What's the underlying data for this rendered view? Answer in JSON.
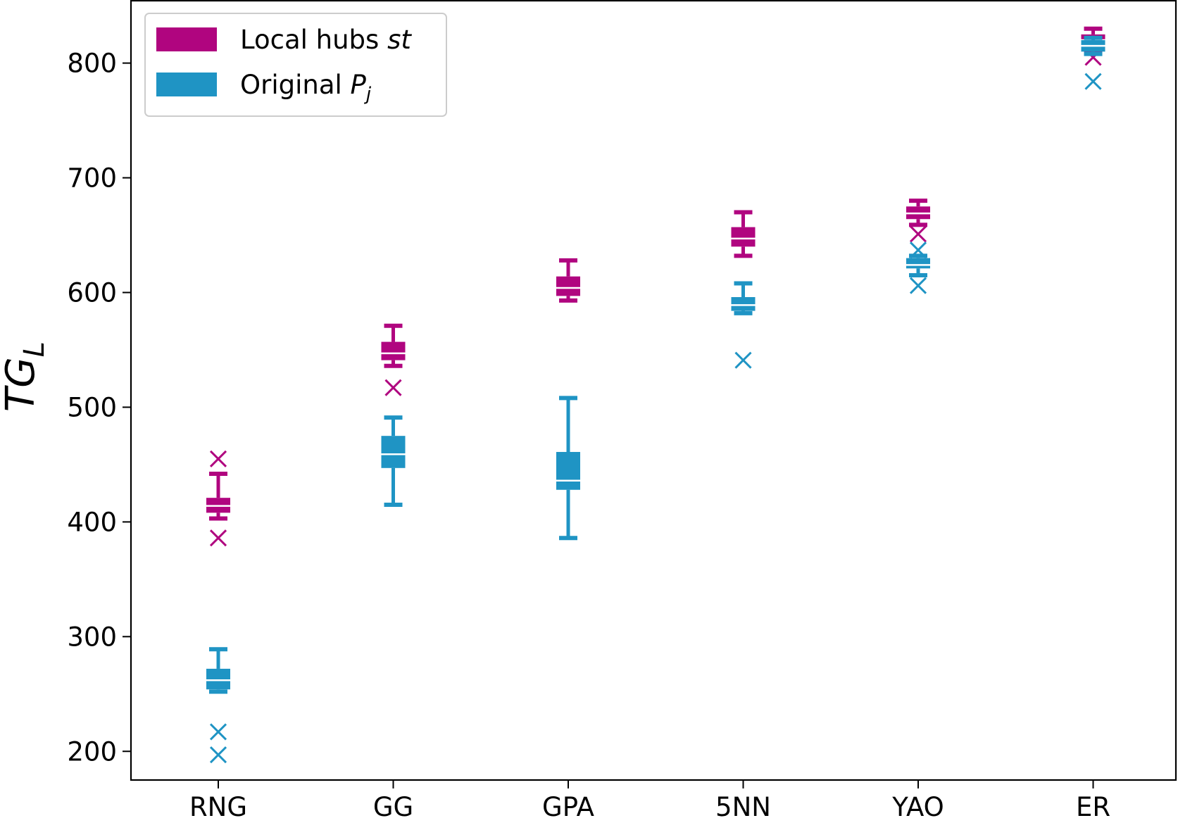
{
  "chart_data": {
    "type": "boxplot",
    "title": "",
    "xlabel": "",
    "ylabel": {
      "main": "TG",
      "sub": "L"
    },
    "ylim": [
      175,
      855
    ],
    "yticks": [
      200,
      300,
      400,
      500,
      600,
      700,
      800
    ],
    "categories": [
      "RNG",
      "GG",
      "GPA",
      "5NN",
      "YAO",
      "ER"
    ],
    "legend": {
      "placement": "top-left"
    },
    "series": [
      {
        "name": "Local hubs st",
        "name_parts": [
          "Local hubs ",
          "st"
        ],
        "color": "#b0057f",
        "boxes": [
          {
            "whisker_low": 403,
            "q1": 408,
            "median": 414,
            "q3": 421,
            "whisker_high": 442,
            "fliers": [
              455,
              386
            ]
          },
          {
            "whisker_low": 536,
            "q1": 541,
            "median": 547,
            "q3": 557,
            "whisker_high": 571,
            "fliers": [
              517
            ]
          },
          {
            "whisker_low": 593,
            "q1": 597,
            "median": 604,
            "q3": 614,
            "whisker_high": 628,
            "fliers": []
          },
          {
            "whisker_low": 632,
            "q1": 640,
            "median": 647,
            "q3": 657,
            "whisker_high": 670,
            "fliers": []
          },
          {
            "whisker_low": 659,
            "q1": 664,
            "median": 669,
            "q3": 675,
            "whisker_high": 680,
            "fliers": [
              651
            ]
          },
          {
            "whisker_low": 810,
            "q1": 815,
            "median": 820,
            "q3": 825,
            "whisker_high": 830,
            "fliers": [
              805
            ]
          }
        ]
      },
      {
        "name": "Original Pj",
        "name_parts": [
          "Original ",
          "P",
          "j"
        ],
        "color": "#1f94c4",
        "boxes": [
          {
            "whisker_low": 252,
            "q1": 254,
            "median": 262,
            "q3": 272,
            "whisker_high": 289,
            "fliers": [
              217,
              197
            ]
          },
          {
            "whisker_low": 415,
            "q1": 447,
            "median": 459,
            "q3": 475,
            "whisker_high": 491,
            "fliers": []
          },
          {
            "whisker_low": 386,
            "q1": 428,
            "median": 436,
            "q3": 461,
            "whisker_high": 508,
            "fliers": []
          },
          {
            "whisker_low": 582,
            "q1": 584,
            "median": 589,
            "q3": 596,
            "whisker_high": 608,
            "fliers": [
              541
            ]
          },
          {
            "whisker_low": 615,
            "q1": 621,
            "median": 624,
            "q3": 630,
            "whisker_high": 632,
            "fliers": [
              637,
              606
            ]
          },
          {
            "whisker_low": 808,
            "q1": 810,
            "median": 815,
            "q3": 820,
            "whisker_high": 822,
            "fliers": [
              784
            ]
          }
        ]
      }
    ]
  }
}
